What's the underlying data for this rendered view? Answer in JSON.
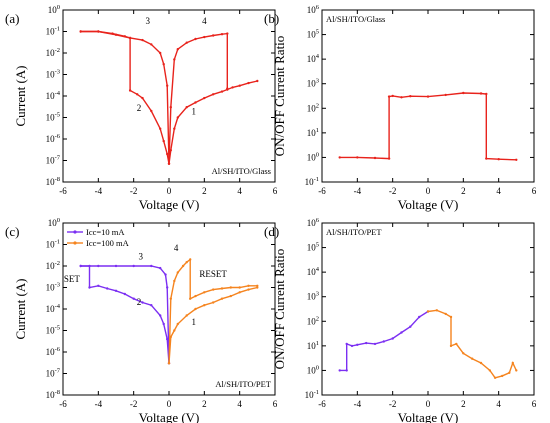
{
  "colors": {
    "red": "#e8231c",
    "purple": "#7b2ff2",
    "orange": "#f5841f",
    "black": "#000000"
  },
  "chart_data": [
    {
      "id": "a",
      "type": "line",
      "panel_label": "(a)",
      "note": "Al/SH/ITO/Glass",
      "xlabel": "Voltage (V)",
      "ylabel": "Current (A)",
      "xlim": [
        -6,
        6
      ],
      "ylim_log10": [
        -8,
        0
      ],
      "yscale": "log",
      "x_ticks": [
        "-6",
        "-4",
        "-2",
        "0",
        "2",
        "4",
        "6"
      ],
      "y_ticks": [
        "10^0",
        "10^-1",
        "10^-2",
        "10^-3",
        "10^-4",
        "10^-5",
        "10^-6",
        "10^-7",
        "10^-8"
      ],
      "series": [
        {
          "color": "#e8231c",
          "x": [
            -5,
            -4,
            -3.2,
            -2.5,
            -2.2,
            -2.2,
            -1.8,
            -1.5,
            -1,
            -0.5,
            -0.3,
            -0.1,
            0,
            0.1,
            0.3,
            0.5,
            1,
            1.5,
            2,
            2.5,
            3,
            3.3,
            3.3,
            3.6,
            4,
            4.5,
            5
          ],
          "y": [
            0.1,
            0.1,
            0.08,
            0.06,
            0.05,
            0.00018,
            0.00012,
            8e-05,
            2e-05,
            3e-06,
            8e-07,
            2e-07,
            7e-08,
            3e-07,
            3e-06,
            1e-05,
            3e-05,
            5e-05,
            8e-05,
            0.00012,
            0.00016,
            0.0002,
            0.0002,
            0.00025,
            0.0003,
            0.0004,
            0.0005
          ]
        },
        {
          "color": "#e8231c",
          "x": [
            -5,
            -4,
            -3,
            -2.2,
            -1.5,
            -1,
            -0.5,
            -0.3,
            -0.1,
            0,
            0.1,
            0.3,
            0.5,
            1,
            1.5,
            2,
            2.5,
            3,
            3.3,
            3.3
          ],
          "y": [
            0.1,
            0.1,
            0.07,
            0.05,
            0.04,
            0.025,
            0.01,
            0.003,
            0.0003,
            7e-08,
            3e-05,
            0.005,
            0.015,
            0.03,
            0.045,
            0.055,
            0.065,
            0.075,
            0.08,
            0.00022
          ]
        }
      ],
      "annotations": [
        {
          "text": "1",
          "x": 1.4,
          "y": 1.4e-05
        },
        {
          "text": "2",
          "x": -1.7,
          "y": 2e-05
        },
        {
          "text": "3",
          "x": -1.2,
          "y": 0.22
        },
        {
          "text": "4",
          "x": 2.0,
          "y": 0.22
        }
      ]
    },
    {
      "id": "b",
      "type": "line",
      "panel_label": "(b)",
      "note": "Al/SH/ITO/Glass",
      "xlabel": "Voltage (V)",
      "ylabel": "ON/OFF Current Ratio",
      "xlim": [
        -6,
        6
      ],
      "ylim_log10": [
        -1,
        6
      ],
      "yscale": "log",
      "x_ticks": [
        "-6",
        "-4",
        "-2",
        "0",
        "2",
        "4",
        "6"
      ],
      "y_ticks": [
        "10^6",
        "10^5",
        "10^4",
        "10^3",
        "10^2",
        "10^1",
        "10^0",
        "10^-1"
      ],
      "series": [
        {
          "color": "#e8231c",
          "x": [
            -5,
            -4,
            -3,
            -2.2,
            -2.2,
            -2,
            -1.5,
            -1,
            0,
            1,
            2,
            3,
            3.3,
            3.3,
            4,
            5
          ],
          "y": [
            1,
            1,
            0.95,
            0.9,
            300,
            320,
            280,
            310,
            300,
            350,
            420,
            400,
            380,
            0.9,
            0.85,
            0.8
          ]
        }
      ]
    },
    {
      "id": "c",
      "type": "line",
      "panel_label": "(c)",
      "note": "Al/SH/ITO/PET",
      "xlabel": "Voltage (V)",
      "ylabel": "Current (A)",
      "xlim": [
        -6,
        6
      ],
      "ylim_log10": [
        -8,
        0
      ],
      "yscale": "log",
      "x_ticks": [
        "-6",
        "-4",
        "-2",
        "0",
        "2",
        "4",
        "6"
      ],
      "y_ticks": [
        "10^0",
        "10^-1",
        "10^-2",
        "10^-3",
        "10^-4",
        "10^-5",
        "10^-6",
        "10^-7",
        "10^-8"
      ],
      "legend": [
        {
          "label": "Icc=10 mA",
          "color": "#7b2ff2"
        },
        {
          "label": "Icc=100 mA",
          "color": "#f5841f"
        }
      ],
      "series": [
        {
          "name": "Icc=10 mA",
          "color": "#7b2ff2",
          "x": [
            -5,
            -4.5,
            -4.5,
            -4,
            -3.5,
            -3,
            -2.5,
            -2,
            -1.5,
            -1,
            -0.5,
            -0.3,
            -0.1,
            0
          ],
          "y": [
            0.01,
            0.01,
            0.001,
            0.0012,
            0.0009,
            0.0007,
            0.0005,
            0.0003,
            0.0002,
            0.00015,
            5e-05,
            2e-05,
            4e-06,
            3e-07
          ]
        },
        {
          "name": "Icc=10 mA",
          "color": "#7b2ff2",
          "x": [
            -5,
            -4,
            -3,
            -2,
            -1,
            -0.5,
            -0.2,
            -0.1,
            0
          ],
          "y": [
            0.01,
            0.01,
            0.01,
            0.01,
            0.01,
            0.008,
            0.004,
            0.001,
            3e-07
          ]
        },
        {
          "name": "Icc=100 mA",
          "color": "#f5841f",
          "x": [
            0,
            0.1,
            0.3,
            0.5,
            0.8,
            1,
            1.2,
            1.2,
            1.5,
            2,
            2.5,
            3,
            3.5,
            4,
            4.5,
            5
          ],
          "y": [
            3e-07,
            0.0003,
            0.002,
            0.005,
            0.01,
            0.015,
            0.02,
            0.0003,
            0.0004,
            0.0006,
            0.0008,
            0.0009,
            0.001,
            0.001,
            0.0012,
            0.0012
          ]
        },
        {
          "name": "Icc=100 mA",
          "color": "#f5841f",
          "x": [
            0,
            0.1,
            0.3,
            0.5,
            1,
            1.5,
            2,
            2.5,
            3,
            3.5,
            4,
            4.5,
            5
          ],
          "y": [
            3e-07,
            5e-06,
            1e-05,
            2e-05,
            5e-05,
            0.0001,
            0.00015,
            0.0002,
            0.0003,
            0.0004,
            0.0006,
            0.0008,
            0.001
          ]
        }
      ],
      "annotations": [
        {
          "text": "SET",
          "x": -5.5,
          "y": 0.0018,
          "color": "#7b2ff2"
        },
        {
          "text": "RESET",
          "x": 2.5,
          "y": 0.003,
          "color": "#f5841f"
        },
        {
          "text": "1",
          "x": 1.4,
          "y": 1.8e-05
        },
        {
          "text": "2",
          "x": -1.7,
          "y": 0.00015
        },
        {
          "text": "3",
          "x": -1.6,
          "y": 0.02
        },
        {
          "text": "4",
          "x": 0.4,
          "y": 0.05
        }
      ]
    },
    {
      "id": "d",
      "type": "line",
      "panel_label": "(d)",
      "note": "Al/SH/ITO/PET",
      "xlabel": "Voltage (V)",
      "ylabel": "ON/OFF Current Ratio",
      "xlim": [
        -6,
        6
      ],
      "ylim_log10": [
        -1,
        6
      ],
      "yscale": "log",
      "x_ticks": [
        "-6",
        "-4",
        "-2",
        "0",
        "2",
        "4",
        "6"
      ],
      "y_ticks": [
        "10^6",
        "10^5",
        "10^4",
        "10^3",
        "10^2",
        "10^1",
        "10^0",
        "10^-1"
      ],
      "series": [
        {
          "name": "Icc=10 mA",
          "color": "#7b2ff2",
          "x": [
            -5,
            -4.6,
            -4.6,
            -4.3,
            -4,
            -3.5,
            -3,
            -2.5,
            -2,
            -1.5,
            -1,
            -0.5,
            0
          ],
          "y": [
            1,
            1,
            12,
            10,
            11,
            13,
            12,
            15,
            20,
            35,
            60,
            150,
            250
          ]
        },
        {
          "name": "Icc=100 mA",
          "color": "#f5841f",
          "x": [
            0,
            0.5,
            1,
            1.3,
            1.3,
            1.6,
            2,
            2.5,
            3,
            3.5,
            3.8,
            4.2,
            4.6,
            4.8,
            5
          ],
          "y": [
            250,
            280,
            200,
            150,
            10,
            12,
            5,
            3,
            2,
            1,
            0.5,
            0.6,
            0.8,
            2,
            1
          ]
        }
      ]
    }
  ]
}
